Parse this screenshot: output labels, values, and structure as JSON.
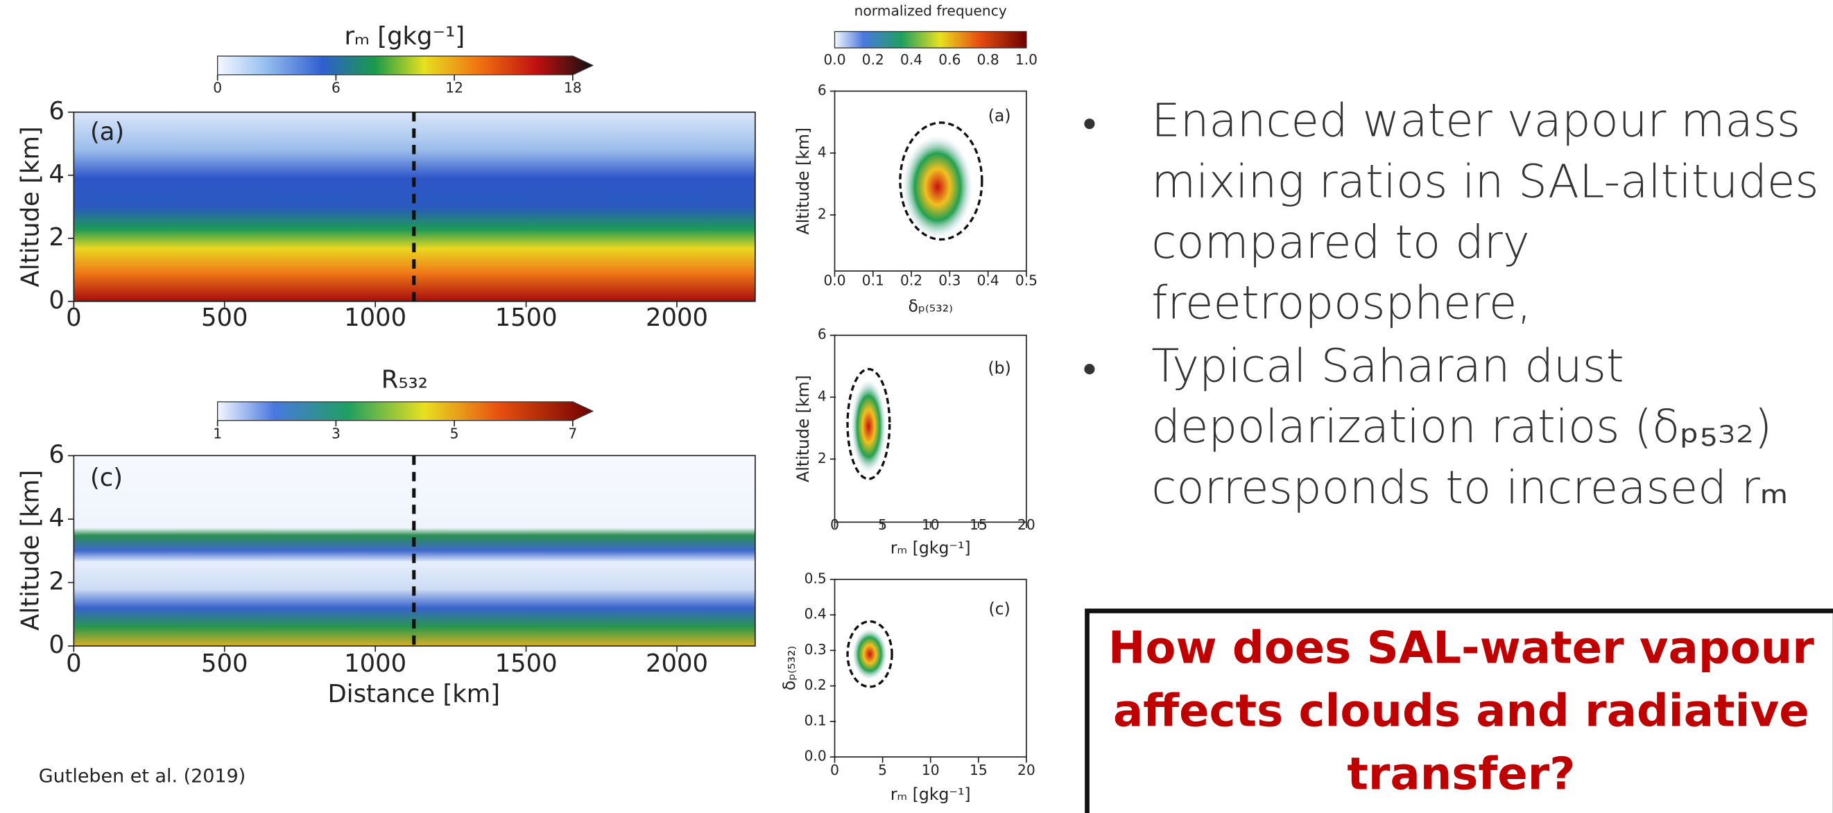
{
  "left_figure": {
    "colorbar_top": {
      "label": "rₘ [gkg⁻¹]",
      "ticks": [
        "0",
        "6",
        "12",
        "18"
      ]
    },
    "panel_a": {
      "label": "(a)",
      "ylabel": "Altitude [km]",
      "yticks": [
        "0",
        "2",
        "4",
        "6"
      ],
      "xticks": [
        "0",
        "500",
        "1000",
        "1500",
        "2000"
      ]
    },
    "colorbar_bottom": {
      "label": "R₅₃₂",
      "ticks": [
        "1",
        "3",
        "5",
        "7"
      ]
    },
    "panel_c": {
      "label": "(c)",
      "ylabel": "Altitude [km]",
      "yticks": [
        "0",
        "2",
        "4",
        "6"
      ],
      "xticks": [
        "0",
        "500",
        "1000",
        "1500",
        "2000"
      ],
      "xlabel": "Distance [km]"
    },
    "citation": "Gutleben et al. (2019)"
  },
  "right_figure": {
    "colorbar": {
      "label": "normalized frequency",
      "ticks": [
        "0.0",
        "0.2",
        "0.4",
        "0.6",
        "0.8",
        "1.0"
      ]
    },
    "panel_a": {
      "label": "(a)",
      "ylabel": "Altitude [km]",
      "yticks": [
        "2",
        "4",
        "6"
      ],
      "xticks": [
        "0.0",
        "0.1",
        "0.2",
        "0.3",
        "0.4",
        "0.5"
      ],
      "xlabel": "δₚ₍₅₃₂₎"
    },
    "panel_b": {
      "label": "(b)",
      "ylabel": "Altitude [km]",
      "yticks": [
        "2",
        "4",
        "6"
      ],
      "xticks": [
        "0",
        "5",
        "10",
        "15",
        "20"
      ],
      "xlabel": "rₘ [gkg⁻¹]"
    },
    "panel_c": {
      "label": "(c)",
      "ylabel": "δₚ₍₅₃₂₎",
      "yticks": [
        "0.0",
        "0.1",
        "0.2",
        "0.3",
        "0.4",
        "0.5"
      ],
      "xticks": [
        "0",
        "5",
        "10",
        "15",
        "20"
      ],
      "xlabel": "rₘ [gkg⁻¹]"
    }
  },
  "bullets": [
    [
      "Enanced water vapour mass",
      "mixing ratios in SAL-altitudes",
      "compared to dry",
      "freetroposphere,"
    ],
    [
      "Typical Saharan dust",
      "depolarization ratios (δₚ₅₃₂)",
      "corresponds to increased rₘ"
    ]
  ],
  "question": [
    "How does SAL-water vapour",
    "affects clouds and radiative",
    "transfer?"
  ]
}
